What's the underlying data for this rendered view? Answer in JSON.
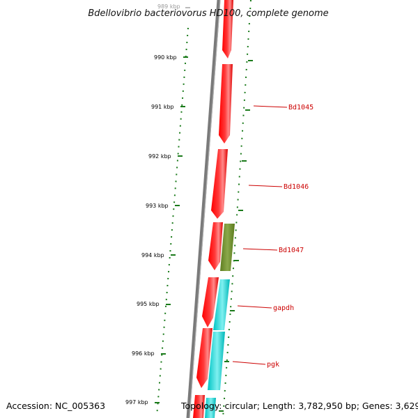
{
  "title": "Bdellovibrio bacteriovorus HD100, complete genome",
  "footer": {
    "accession": "Accession: NC_005363",
    "summary": "Topology: circular; Length: 3,782,950 bp; Genes: 3,629"
  },
  "scale": {
    "top_partial_label": "989 kbp",
    "labels": [
      "990 kbp",
      "991 kbp",
      "992 kbp",
      "993 kbp",
      "994 kbp",
      "995 kbp",
      "996 kbp",
      "997 kbp"
    ]
  },
  "gene_labels": [
    "Bd1045",
    "Bd1046",
    "Bd1047",
    "gapdh",
    "pgk"
  ],
  "colors": {
    "backbone": "#808080",
    "forward_gene": "#ff0000",
    "other_gene": "#6b8e23",
    "cyan_gene": "#00cccc",
    "tick": "#1a7a1a",
    "label_line": "#cc0000"
  }
}
